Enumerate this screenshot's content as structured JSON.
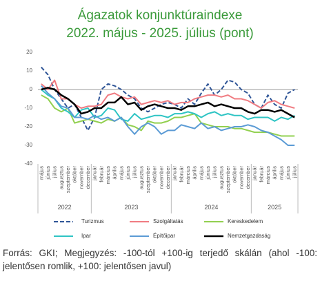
{
  "chart_data": {
    "type": "line",
    "title": "Ágazatok konjunktúraindexe",
    "subtitle": "2022. május - 2025. július (pont)",
    "categories": [
      "május",
      "június",
      "július",
      "augusztus",
      "szeptember",
      "október",
      "november",
      "december",
      "január",
      "február",
      "március",
      "április",
      "május",
      "június",
      "július",
      "augusztus",
      "szeptember",
      "október",
      "november",
      "december",
      "január",
      "február",
      "március",
      "április",
      "május",
      "június",
      "július",
      "augusztus",
      "szeptember",
      "október",
      "november",
      "december",
      "január",
      "február",
      "március",
      "április",
      "május",
      "június",
      "július"
    ],
    "years": [
      "2022",
      "2023",
      "2024",
      "2025"
    ],
    "ylim": [
      -40,
      20
    ],
    "yticks": [
      -40,
      -30,
      -20,
      -10,
      0,
      10,
      20
    ],
    "series": [
      {
        "name": "Turizmus",
        "color": "#2f5597",
        "dash": true,
        "values": [
          12,
          8,
          0,
          -5,
          -10,
          -8,
          -15,
          -22,
          -15,
          0,
          3,
          2,
          0,
          -3,
          -5,
          -10,
          -12,
          -10,
          -8,
          -7,
          -8,
          -10,
          -5,
          -8,
          -2,
          3,
          -3,
          0,
          5,
          4,
          0,
          -2,
          -8,
          -10,
          -3,
          -8,
          -10,
          -2,
          0
        ]
      },
      {
        "name": "Szolgáltatás",
        "color": "#f07c82",
        "values": [
          3,
          0,
          5,
          -5,
          -5,
          -8,
          -10,
          -9,
          -9,
          -8,
          -3,
          -2,
          -4,
          -5,
          -4,
          -8,
          -7,
          -6,
          -7,
          -6,
          -8,
          -7,
          -7,
          -5,
          -4,
          -3,
          -3,
          -4,
          -3,
          -5,
          -5,
          -6,
          -8,
          -10,
          -7,
          -6,
          -8,
          -9,
          -10
        ]
      },
      {
        "name": "Kereskedelem",
        "color": "#92d050",
        "values": [
          -3,
          -5,
          -10,
          -12,
          -10,
          -18,
          -17,
          -16,
          -17,
          -18,
          -16,
          -17,
          -15,
          -19,
          -20,
          -22,
          -17,
          -18,
          -18,
          -17,
          -15,
          -15,
          -14,
          -13,
          -18,
          -19,
          -20,
          -20,
          -20,
          -21,
          -21,
          -22,
          -23,
          -23,
          -23,
          -24,
          -25,
          -25,
          -25
        ]
      },
      {
        "name": "Ipar",
        "color": "#2ec4c4",
        "values": [
          0,
          -3,
          -5,
          -10,
          -12,
          -15,
          -11,
          -10,
          -15,
          -14,
          -10,
          -11,
          -16,
          -17,
          -13,
          -16,
          -15,
          -14,
          -14,
          -15,
          -13,
          -13,
          -12,
          -13,
          -15,
          -13,
          -12,
          -14,
          -13,
          -14,
          -14,
          -16,
          -15,
          -15,
          -15,
          -17,
          -15,
          -16,
          -14
        ]
      },
      {
        "name": "Építőipar",
        "color": "#5b9bd5",
        "values": [
          2,
          -2,
          -5,
          -9,
          -10,
          -15,
          -15,
          -16,
          -14,
          -16,
          -15,
          -17,
          -15,
          -20,
          -24,
          -20,
          -18,
          -20,
          -24,
          -22,
          -22,
          -19,
          -20,
          -21,
          -18,
          -21,
          -20,
          -22,
          -21,
          -20,
          -20,
          -19,
          -20,
          -22,
          -23,
          -25,
          -27,
          -30,
          -30
        ]
      },
      {
        "name": "Nemzetgazdaság",
        "color": "#000000",
        "width": 2.5,
        "values": [
          0,
          1,
          0,
          -3,
          -5,
          -8,
          -13,
          -12,
          -10,
          -10,
          -7,
          -7,
          -4,
          -8,
          -7,
          -11,
          -9,
          -8,
          -9,
          -10,
          -10,
          -11,
          -9,
          -9,
          -8,
          -7,
          -9,
          -8,
          -9,
          -10,
          -10,
          -12,
          -13,
          -11,
          -11,
          -12,
          -11,
          -13,
          -15
        ]
      }
    ],
    "source": "Forrás: GKI; Megjegyzés: -100-tól +100-ig terjedő skálán (ahol -100: jelentősen romlik, +100: jelentősen javul)"
  }
}
